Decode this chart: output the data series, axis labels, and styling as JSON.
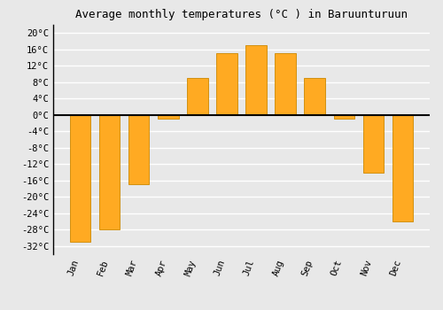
{
  "title": "Average monthly temperatures (°C ) in Baruunturuun",
  "months": [
    "Jan",
    "Feb",
    "Mar",
    "Apr",
    "May",
    "Jun",
    "Jul",
    "Aug",
    "Sep",
    "Oct",
    "Nov",
    "Dec"
  ],
  "values": [
    -31,
    -28,
    -17,
    -1,
    9,
    15,
    17,
    15,
    9,
    -1,
    -14,
    -26
  ],
  "bar_color": "#FFAA22",
  "bar_edge_color": "#CC8800",
  "ylim": [
    -34,
    22
  ],
  "yticks": [
    -32,
    -28,
    -24,
    -20,
    -16,
    -12,
    -8,
    -4,
    0,
    4,
    8,
    12,
    16,
    20
  ],
  "ytick_labels": [
    "-32°C",
    "-28°C",
    "-24°C",
    "-20°C",
    "-16°C",
    "-12°C",
    "-8°C",
    "-4°C",
    "0°C",
    "4°C",
    "8°C",
    "12°C",
    "16°C",
    "20°C"
  ],
  "background_color": "#e8e8e8",
  "plot_bg_color": "#e8e8e8",
  "grid_color": "#ffffff",
  "zero_line_color": "#000000",
  "title_fontsize": 9,
  "tick_fontsize": 7.5
}
